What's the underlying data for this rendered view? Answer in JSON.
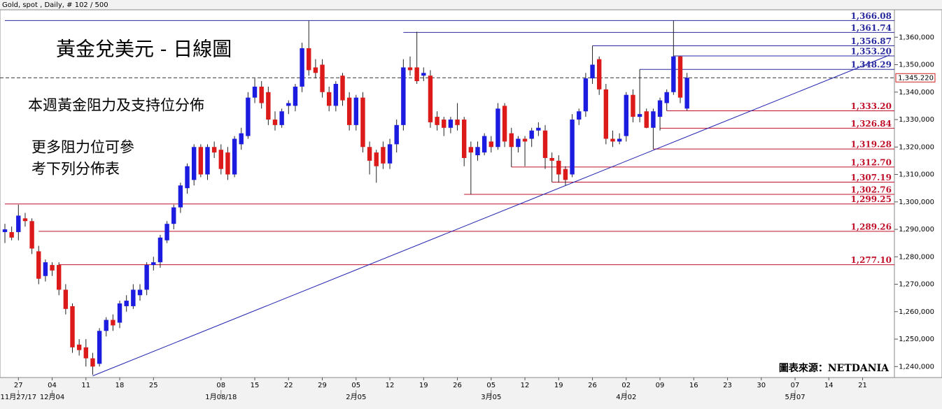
{
  "chart_data": {
    "type": "candlestick",
    "title": "Gold, spot , Daily, # 102 / 500",
    "annotations": [
      "黃金兌美元 - 日線圖",
      "本週黃金阻力及支持位分佈",
      "更多阻力位可參",
      "考下列分佈表"
    ],
    "source": "圖表來源：NETDANIA",
    "up_color": "#1c1ce0",
    "down_color": "#dd1a1a",
    "categories": [
      null,
      null,
      "27",
      null,
      null,
      null,
      null,
      "04",
      null,
      null,
      null,
      null,
      "11",
      null,
      null,
      null,
      null,
      "18",
      null,
      null,
      null,
      null,
      "25",
      null,
      null,
      null,
      null,
      null,
      null,
      null,
      null,
      null,
      "08",
      null,
      null,
      null,
      null,
      "15",
      null,
      null,
      null,
      null,
      "22",
      null,
      null,
      null,
      null,
      "29",
      null,
      null,
      null,
      null,
      "05",
      null,
      null,
      null,
      null,
      "12",
      null,
      null,
      null,
      null,
      "19",
      null,
      null,
      null,
      null,
      "26",
      null,
      null,
      null,
      null,
      "05",
      null,
      null,
      null,
      null,
      "12",
      null,
      null,
      null,
      null,
      "19",
      null,
      null,
      null,
      null,
      "26",
      null,
      null,
      null,
      null,
      "02",
      null,
      null,
      null,
      null,
      "09",
      null,
      null,
      null,
      null,
      "16",
      null,
      null,
      null,
      null,
      "23",
      null,
      null,
      null,
      null,
      "30",
      null,
      null,
      null,
      null,
      "07",
      null,
      null,
      null,
      null,
      "14",
      null,
      null,
      null,
      null,
      "21",
      null,
      null,
      null,
      null
    ],
    "month_labels": [
      {
        "at": 2,
        "label": "11月27/17"
      },
      {
        "at": 7,
        "label": "12月04"
      },
      {
        "at": 32,
        "label": "1月08/18"
      },
      {
        "at": 52,
        "label": "2月05"
      },
      {
        "at": 72,
        "label": "3月05"
      },
      {
        "at": 92,
        "label": "4月02"
      },
      {
        "at": 117,
        "label": "5月07"
      }
    ],
    "open": [
      1289,
      1289,
      1289,
      1294,
      1293,
      1282,
      1273,
      1277,
      1277,
      1268,
      1262,
      1248,
      1247,
      1243,
      1241,
      1253,
      1257,
      1256,
      1262,
      1262,
      1266,
      1268,
      1277,
      1278,
      1286,
      1292,
      1298,
      1305,
      1308,
      1320,
      1310,
      1320,
      1319,
      1318,
      1310,
      1321,
      1324,
      1338,
      1342,
      1340,
      1330,
      1328,
      1335,
      1335,
      1342,
      1356,
      1349,
      1350,
      1340,
      1335,
      1346,
      1338,
      1328,
      1338,
      1320,
      1318,
      1320,
      1314,
      1321,
      1328,
      1349,
      1349,
      1346,
      1346,
      1331,
      1330,
      1327,
      1330,
      1330,
      1320,
      1317,
      1318,
      1322,
      1320,
      1335,
      1325,
      1320,
      1323,
      1323,
      1326,
      1326,
      1316,
      1315,
      1312,
      1310,
      1330,
      1333,
      1345,
      1352,
      1341,
      1323,
      1322,
      1324,
      1339,
      1331,
      1333,
      1327,
      1331,
      1336,
      1340,
      1353,
      1334,
      null,
      null,
      null,
      null,
      null,
      null,
      null,
      null,
      null,
      null,
      null,
      null,
      null,
      null,
      null,
      null,
      null,
      null,
      null,
      null,
      null,
      null,
      null,
      null,
      null,
      null,
      null,
      null,
      null,
      null
    ],
    "high": [
      1292,
      1291,
      1299,
      1296,
      1294,
      1284,
      1279,
      1278,
      1278,
      1270,
      1263,
      1250,
      1250,
      1245,
      1254,
      1258,
      1259,
      1264,
      1266,
      1270,
      1270,
      1278,
      1280,
      1288,
      1293,
      1299,
      1307,
      1314,
      1321,
      1321,
      1321,
      1322,
      1321,
      1320,
      1324,
      1327,
      1340,
      1345,
      1344,
      1342,
      1333,
      1334,
      1337,
      1343,
      1358,
      1366,
      1352,
      1352,
      1342,
      1344,
      1347,
      1340,
      1339,
      1340,
      1322,
      1319,
      1322,
      1323,
      1330,
      1352,
      1353,
      1362,
      1349,
      1348,
      1333,
      1331,
      1331,
      1336,
      1331,
      1322,
      1322,
      1325,
      1324,
      1336,
      1336,
      1327,
      1324,
      1324,
      1327,
      1329,
      1328,
      1318,
      1317,
      1313,
      1332,
      1334,
      1347,
      1356.87,
      1353,
      1343,
      1326,
      1325,
      1340,
      1341,
      1348.29,
      1334,
      1334,
      1338,
      1341,
      1366.08,
      1353.2,
      1347,
      null,
      null,
      null,
      null,
      null,
      null,
      null,
      null,
      null,
      null,
      null,
      null,
      null,
      null,
      null,
      null,
      null,
      null,
      null,
      null,
      null,
      null,
      null,
      null,
      null,
      null,
      null,
      null,
      null,
      null
    ],
    "low": [
      1285,
      1286,
      1286,
      1291,
      1281,
      1270,
      1271,
      1273,
      1266,
      1259,
      1245,
      1244,
      1240,
      1237,
      1240,
      1251,
      1253,
      1254,
      1260,
      1261,
      1264,
      1266,
      1275,
      1276,
      1285,
      1290,
      1296,
      1303,
      1306,
      1309,
      1308,
      1316,
      1310,
      1308,
      1309,
      1319,
      1323,
      1336,
      1334,
      1328,
      1326,
      1327,
      1332,
      1333,
      1340,
      1346,
      1345,
      1338,
      1333,
      1333,
      1335,
      1326,
      1326,
      1318,
      1310,
      1307,
      1312,
      1312,
      1318,
      1326,
      1346,
      1343,
      1344,
      1327,
      1326,
      1324,
      1325,
      1326,
      1313,
      1302.76,
      1315,
      1317,
      1318,
      1319,
      1320,
      1312.7,
      1318,
      1313,
      1320,
      1324,
      1312,
      1307.19,
      1307,
      1306,
      1309,
      1328,
      1331,
      1343,
      1339,
      1321,
      1320,
      1321,
      1322,
      1329,
      1329,
      1326.84,
      1319.28,
      1326,
      1333.2,
      1339,
      1336,
      1333.2,
      null,
      null,
      null,
      null,
      null,
      null,
      null,
      null,
      null,
      null,
      null,
      null,
      null,
      null,
      null,
      null,
      null,
      null,
      null,
      null,
      null,
      null,
      null,
      null,
      null,
      null,
      null,
      null,
      null,
      null
    ],
    "close": [
      1290,
      1287,
      1295,
      1293,
      1283,
      1272,
      1278,
      1275,
      1268,
      1261,
      1247,
      1246,
      1243,
      1240,
      1253,
      1257,
      1255,
      1263,
      1264,
      1268,
      1268,
      1277,
      1278,
      1287,
      1292,
      1298,
      1306,
      1313,
      1320,
      1310,
      1320,
      1318,
      1312,
      1310,
      1323,
      1325,
      1338,
      1342,
      1336,
      1330,
      1328,
      1333,
      1336,
      1342,
      1356,
      1348,
      1347,
      1340,
      1335,
      1343,
      1337,
      1328,
      1338,
      1320,
      1315,
      1313,
      1314,
      1321,
      1328,
      1349,
      1348,
      1344,
      1347,
      1329,
      1328,
      1327,
      1330,
      1328,
      1316,
      1318,
      1320,
      1324,
      1320,
      1334,
      1322,
      1320,
      1323,
      1322,
      1326,
      1327,
      1316,
      1315,
      1310,
      1308,
      1330,
      1333,
      1345,
      1350,
      1341,
      1323,
      1322,
      1323,
      1339,
      1331,
      1332,
      1327,
      1333,
      1337,
      1340,
      1353,
      1338,
      1345.22,
      null,
      null,
      null,
      null,
      null,
      null,
      null,
      null,
      null,
      null,
      null,
      null,
      null,
      null,
      null,
      null,
      null,
      null,
      null,
      null,
      null,
      null,
      null,
      null,
      null,
      null,
      null,
      null,
      null,
      null
    ],
    "ylim": [
      1236,
      1370
    ],
    "yticks": [
      {
        "value": 1240,
        "label": "1,240,000"
      },
      {
        "value": 1250,
        "label": "1,250,000"
      },
      {
        "value": 1260,
        "label": "1,260,000"
      },
      {
        "value": 1270,
        "label": "1,270,000"
      },
      {
        "value": 1280,
        "label": "1,280,000"
      },
      {
        "value": 1290,
        "label": "1,290,000"
      },
      {
        "value": 1300,
        "label": "1,300,000"
      },
      {
        "value": 1310,
        "label": "1,310,000"
      },
      {
        "value": 1320,
        "label": "1,320,000"
      },
      {
        "value": 1330,
        "label": "1,330,000"
      },
      {
        "value": 1340,
        "label": "1,340,000"
      },
      {
        "value": 1350,
        "label": "1,350,000"
      },
      {
        "value": 1360,
        "label": "1,360,000"
      }
    ],
    "current": {
      "value": 1345.22,
      "label": "1,345.220"
    },
    "levels": [
      {
        "value": 1366.08,
        "label": "1,366.08",
        "color": "#2a2aa0",
        "from": 0
      },
      {
        "value": 1361.74,
        "label": "1,361.74",
        "color": "#2a2aa0",
        "from": 59
      },
      {
        "value": 1356.87,
        "label": "1,356.87",
        "color": "#2a2aa0",
        "from": 87
      },
      {
        "value": 1353.2,
        "label": "1,353.20",
        "color": "#2a2aa0",
        "from": 99
      },
      {
        "value": 1348.29,
        "label": "1,348.29",
        "color": "#2a2aa0",
        "from": 94
      },
      {
        "value": 1333.2,
        "label": "1,333.20",
        "color": "#c0102a",
        "from": 98
      },
      {
        "value": 1326.84,
        "label": "1,326.84",
        "color": "#c0102a",
        "from": 97
      },
      {
        "value": 1319.28,
        "label": "1,319.28",
        "color": "#c0102a",
        "from": 96
      },
      {
        "value": 1312.7,
        "label": "1,312.70",
        "color": "#c0102a",
        "from": 75
      },
      {
        "value": 1307.19,
        "label": "1,307.19",
        "color": "#c0102a",
        "from": 81
      },
      {
        "value": 1302.76,
        "label": "1,302.76",
        "color": "#c0102a",
        "from": 68
      },
      {
        "value": 1299.25,
        "label": "1,299.25",
        "color": "#c0102a",
        "from": 0
      },
      {
        "value": 1289.26,
        "label": "1,289.26",
        "color": "#c0102a",
        "from": 5
      },
      {
        "value": 1277.1,
        "label": "1,277.10",
        "color": "#c0102a",
        "from": 8
      }
    ],
    "trendline": {
      "color": "#2020b0",
      "start": [
        13,
        1236.6
      ],
      "end": [
        131,
        1353.5
      ]
    }
  }
}
